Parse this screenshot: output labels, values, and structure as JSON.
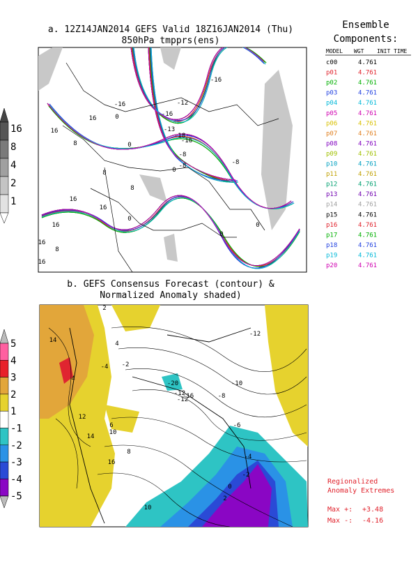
{
  "panel_a": {
    "title": "a. 12Z14JAN2014 GEFS Valid 18Z16JAN2014 (Thu)",
    "subtitle": "850hPa tmpprs(ens)",
    "colorbar": [
      "16",
      "8",
      "4",
      "2",
      "1"
    ],
    "contour_labels": [
      "-16",
      "-16",
      "0",
      "-16",
      "-12",
      "-13",
      "-16",
      "-18",
      "0",
      "-8",
      "-8",
      "16",
      "16",
      "8",
      "8",
      "-8",
      "8",
      "0",
      "16",
      "16",
      "8",
      "16",
      "0",
      "0",
      "0",
      "16",
      "16"
    ]
  },
  "ensemble": {
    "title": "Ensemble",
    "title2": "Components:",
    "header": [
      "MODEL",
      "WGT",
      "INIT TIME"
    ],
    "rows": [
      {
        "model": "c00",
        "wgt": "4.761",
        "color": "#000000"
      },
      {
        "model": "p01",
        "wgt": "4.761",
        "color": "#e0202a"
      },
      {
        "model": "p02",
        "wgt": "4.761",
        "color": "#00b000"
      },
      {
        "model": "p03",
        "wgt": "4.761",
        "color": "#2040e0"
      },
      {
        "model": "p04",
        "wgt": "4.761",
        "color": "#00b8d8"
      },
      {
        "model": "p05",
        "wgt": "4.761",
        "color": "#d000b0"
      },
      {
        "model": "p06",
        "wgt": "4.761",
        "color": "#d8c000"
      },
      {
        "model": "p07",
        "wgt": "4.761",
        "color": "#e08020"
      },
      {
        "model": "p08",
        "wgt": "4.761",
        "color": "#8000c0"
      },
      {
        "model": "p09",
        "wgt": "4.761",
        "color": "#a0c000"
      },
      {
        "model": "p10",
        "wgt": "4.761",
        "color": "#00a0c0"
      },
      {
        "model": "p11",
        "wgt": "4.761",
        "color": "#c0a000"
      },
      {
        "model": "p12",
        "wgt": "4.761",
        "color": "#00a070"
      },
      {
        "model": "p13",
        "wgt": "4.761",
        "color": "#7000b0"
      },
      {
        "model": "p14",
        "wgt": "4.761",
        "color": "#a0a0a0"
      },
      {
        "model": "p15",
        "wgt": "4.761",
        "color": "#000000"
      },
      {
        "model": "p16",
        "wgt": "4.761",
        "color": "#e0202a"
      },
      {
        "model": "p17",
        "wgt": "4.761",
        "color": "#00b000"
      },
      {
        "model": "p18",
        "wgt": "4.761",
        "color": "#2040e0"
      },
      {
        "model": "p19",
        "wgt": "4.761",
        "color": "#00b8d8"
      },
      {
        "model": "p20",
        "wgt": "4.761",
        "color": "#d000b0"
      }
    ]
  },
  "panel_b": {
    "title": "b. GEFS Consensus Forecast (contour) &",
    "subtitle": "Normalized Anomaly shaded)",
    "colorbar": [
      "5",
      "4",
      "3",
      "2",
      "1",
      "-1",
      "-2",
      "-3",
      "-4",
      "-5"
    ],
    "contour_labels": [
      "2",
      "14",
      "4",
      "-4",
      "-2",
      "-20",
      "-12",
      "-16",
      "-12",
      "-10",
      "-8",
      "-6",
      "12",
      "10",
      "14",
      "16",
      "6",
      "8",
      "10",
      "-4",
      "-2",
      "0",
      "2",
      "-12",
      "4"
    ]
  },
  "extremes": {
    "title": "Regionalized",
    "title2": "Anomaly Extremes",
    "max_pos_label": "Max +:",
    "max_pos": "+3.48",
    "max_neg_label": "Max -:",
    "max_neg": "-4.16"
  }
}
